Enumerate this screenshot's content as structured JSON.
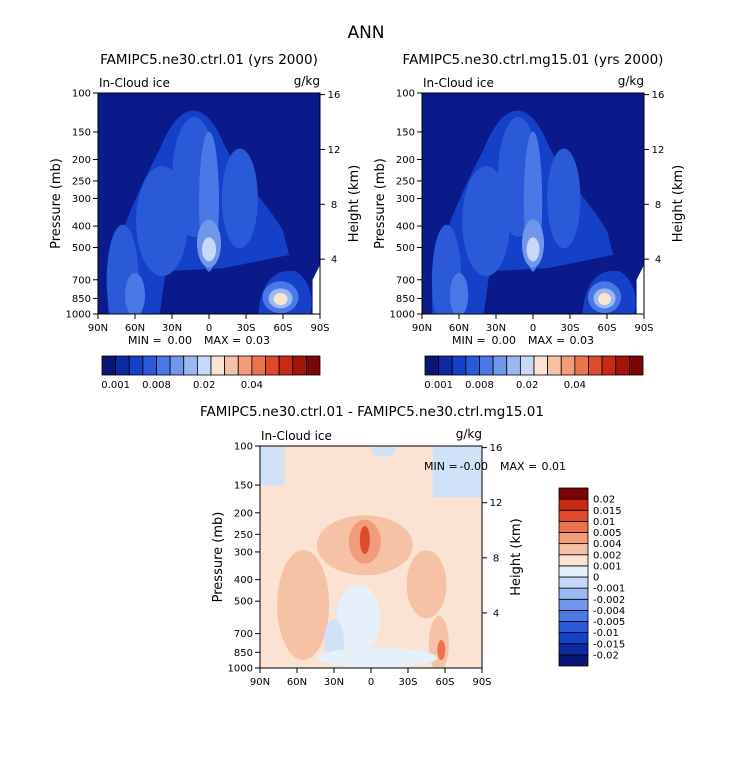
{
  "page": {
    "title": "ANN"
  },
  "colors": {
    "bg_field": "#0b1a8a",
    "frame": "#000000"
  },
  "chart_data": [
    {
      "type": "heatmap",
      "id": "ctrl",
      "title": "FAMIPC5.ne30.ctrl.01 (yrs 2000)",
      "variable": "In-Cloud ice",
      "units": "g/kg",
      "ylabel": "Pressure (mb)",
      "y2label": "Height (km)",
      "x_ticks": [
        "90N",
        "60N",
        "30N",
        "0",
        "30S",
        "60S",
        "90S"
      ],
      "x_range": [
        90,
        -90
      ],
      "y_ticks": [
        100,
        150,
        200,
        250,
        300,
        400,
        500,
        700,
        850,
        1000
      ],
      "y_range": [
        100,
        1000
      ],
      "height_ticks": [
        4,
        8,
        12,
        16
      ],
      "stats": {
        "min_label": "MIN =",
        "min": "0.00",
        "max_label": "MAX =",
        "max": "0.03"
      },
      "colorbar": {
        "orientation": "horizontal",
        "colors": [
          "#0a1672",
          "#0d2aa0",
          "#1540c8",
          "#2a5ad8",
          "#4a78e6",
          "#7197ec",
          "#9cb8f2",
          "#c7d8f8",
          "#fbe3d4",
          "#f6c2a6",
          "#f19c7a",
          "#ea734f",
          "#e04a2c",
          "#c92a16",
          "#a3150a",
          "#7a0707"
        ],
        "labels": [
          "0.001",
          "0.008",
          "0.02",
          "0.04"
        ]
      }
    },
    {
      "type": "heatmap",
      "id": "mg15",
      "title": "FAMIPC5.ne30.ctrl.mg15.01 (yrs 2000)",
      "variable": "In-Cloud ice",
      "units": "g/kg",
      "ylabel": "Pressure (mb)",
      "y2label": "Height (km)",
      "x_ticks": [
        "90N",
        "60N",
        "30N",
        "0",
        "30S",
        "60S",
        "90S"
      ],
      "x_range": [
        90,
        -90
      ],
      "y_ticks": [
        100,
        150,
        200,
        250,
        300,
        400,
        500,
        700,
        850,
        1000
      ],
      "y_range": [
        100,
        1000
      ],
      "height_ticks": [
        4,
        8,
        12,
        16
      ],
      "stats": {
        "min_label": "MIN =",
        "min": "0.00",
        "max_label": "MAX =",
        "max": "0.03"
      },
      "colorbar": {
        "orientation": "horizontal",
        "colors": [
          "#0a1672",
          "#0d2aa0",
          "#1540c8",
          "#2a5ad8",
          "#4a78e6",
          "#7197ec",
          "#9cb8f2",
          "#c7d8f8",
          "#fbe3d4",
          "#f6c2a6",
          "#f19c7a",
          "#ea734f",
          "#e04a2c",
          "#c92a16",
          "#a3150a",
          "#7a0707"
        ],
        "labels": [
          "0.001",
          "0.008",
          "0.02",
          "0.04"
        ]
      }
    },
    {
      "type": "heatmap",
      "id": "diff",
      "title": "FAMIPC5.ne30.ctrl.01 - FAMIPC5.ne30.ctrl.mg15.01",
      "variable": "In-Cloud ice",
      "units": "g/kg",
      "ylabel": "Pressure (mb)",
      "y2label": "Height (km)",
      "x_ticks": [
        "90N",
        "60N",
        "30N",
        "0",
        "30S",
        "60S",
        "90S"
      ],
      "x_range": [
        90,
        -90
      ],
      "y_ticks": [
        100,
        150,
        200,
        250,
        300,
        400,
        500,
        700,
        850,
        1000
      ],
      "y_range": [
        100,
        1000
      ],
      "height_ticks": [
        4,
        8,
        12,
        16
      ],
      "stats": {
        "min_label": "MIN =",
        "min": "-0.00",
        "max_label": "MAX =",
        "max": "0.01"
      },
      "colorbar": {
        "orientation": "vertical",
        "colors": [
          "#0a1672",
          "#0d2aa0",
          "#1540c8",
          "#2a5ad8",
          "#4a78e6",
          "#7197ec",
          "#9cb8f2",
          "#c7d8f8",
          "#e6f0fb",
          "#fbe3d4",
          "#f6c2a6",
          "#f19c7a",
          "#ea734f",
          "#e04a2c",
          "#c92a16",
          "#7a0707"
        ],
        "labels": [
          "-0.02",
          "-0.015",
          "-0.01",
          "-0.005",
          "-0.004",
          "-0.002",
          "-0.001",
          "0",
          "0.001",
          "0.002",
          "0.004",
          "0.005",
          "0.01",
          "0.015",
          "0.02"
        ]
      }
    }
  ]
}
